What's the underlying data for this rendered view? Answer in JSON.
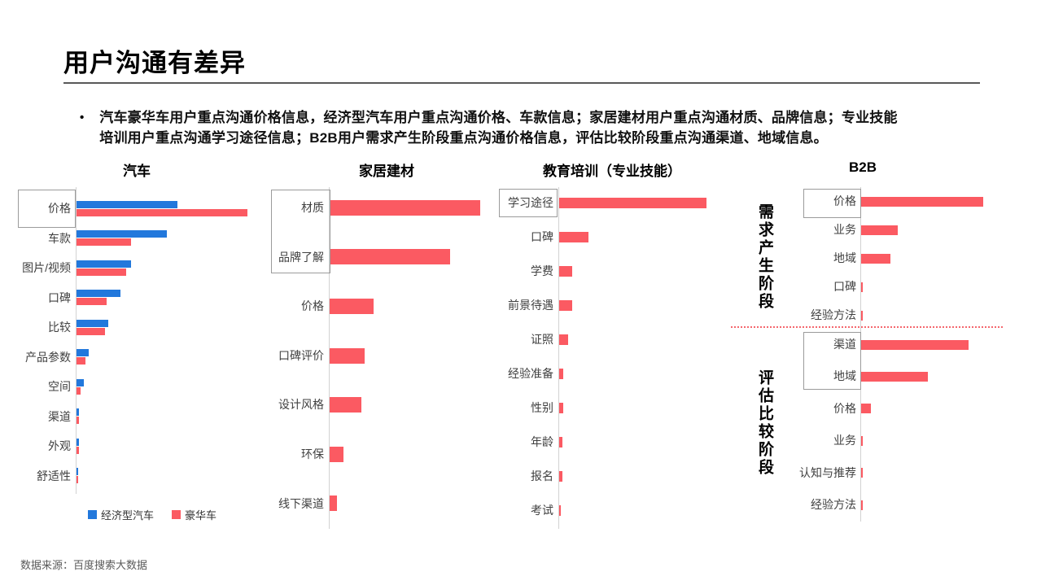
{
  "page": {
    "title": "用户沟通有差异",
    "bullet_marker": "•",
    "bullet_lines": [
      "汽车豪华车用户重点沟通价格信息，经济型汽车用户重点沟通价格、车款信息；家居建材用户重点沟通材质、品牌信息；专业技能",
      "培训用户重点沟通学习途径信息；B2B用户需求产生阶段重点沟通价格信息，评估比较阶段重点沟通渠道、地域信息。"
    ],
    "source": "数据来源：百度搜索大数据"
  },
  "colors": {
    "economy_blue": "#2278DC",
    "luxury_red": "#FB5A62",
    "axis_gray": "#D2D2D2",
    "highlight_box_border": "#9B9B9B",
    "divider_dotted_red": "#F4676D"
  },
  "chart_data": [
    {
      "type": "bar",
      "orientation": "horizontal",
      "title": "汽车",
      "categories": [
        "价格",
        "车款",
        "图片/视频",
        "口碑",
        "比较",
        "产品参数",
        "空间",
        "渠道",
        "外观",
        "舒适性"
      ],
      "series": [
        {
          "name": "经济型汽车",
          "color": "#2278DC",
          "values": [
            57,
            51,
            31,
            25,
            18,
            7,
            4,
            1.5,
            1.5,
            0.7
          ]
        },
        {
          "name": "豪华车",
          "color": "#FB5A62",
          "values": [
            97,
            31,
            28,
            17,
            16,
            5,
            2.5,
            1.5,
            1.5,
            0.7
          ]
        }
      ],
      "highlighted_categories": [
        "价格"
      ],
      "legend_position": "bottom",
      "value_axis": "hidden",
      "values_unit": "relative width percent (no numeric axis shown)"
    },
    {
      "type": "bar",
      "orientation": "horizontal",
      "title": "家居建材",
      "categories": [
        "材质",
        "品牌了解",
        "价格",
        "口碑评价",
        "设计风格",
        "环保",
        "线下渠道"
      ],
      "series": [
        {
          "name": "家居建材",
          "color": "#FB5A62",
          "values": [
            100,
            80,
            29,
            23,
            21,
            9,
            5
          ]
        }
      ],
      "highlighted_categories": [
        "材质",
        "品牌了解"
      ],
      "value_axis": "hidden"
    },
    {
      "type": "bar",
      "orientation": "horizontal",
      "title": "教育培训（专业技能）",
      "categories": [
        "学习途径",
        "口碑",
        "学费",
        "前景待遇",
        "证照",
        "经验准备",
        "性别",
        "年龄",
        "报名",
        "考试"
      ],
      "series": [
        {
          "name": "教育培训",
          "color": "#FB5A62",
          "values": [
            100,
            20,
            9,
            9,
            6,
            3,
            3,
            2,
            2,
            1
          ]
        }
      ],
      "highlighted_categories": [
        "学习途径"
      ],
      "value_axis": "hidden"
    },
    {
      "type": "bar",
      "orientation": "horizontal",
      "title": "B2B",
      "series_color": "#FB5A62",
      "sections": [
        {
          "stage": "需求产生阶段",
          "categories": [
            "价格",
            "业务",
            "地域",
            "口碑",
            "经验方法"
          ],
          "values": [
            97,
            29,
            23,
            1.5,
            1.5
          ],
          "highlighted_categories": [
            "价格"
          ]
        },
        {
          "stage": "评估比较阶段",
          "categories": [
            "渠道",
            "地域",
            "价格",
            "业务",
            "认知与推荐",
            "经验方法"
          ],
          "values": [
            85,
            53,
            8,
            1.5,
            1.5,
            1.5
          ],
          "highlighted_categories": [
            "渠道",
            "地域"
          ]
        }
      ],
      "divider": "red dotted horizontal line between the two stages",
      "value_axis": "hidden"
    }
  ]
}
